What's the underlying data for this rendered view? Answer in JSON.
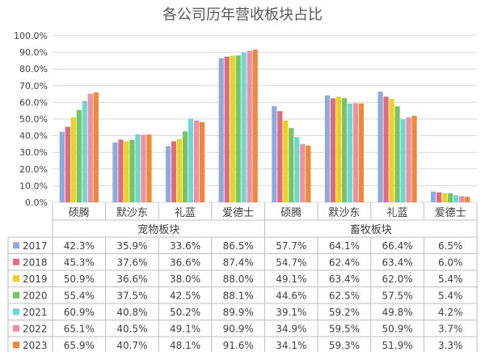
{
  "chart_data": {
    "type": "bar",
    "title": "各公司历年营收板块占比",
    "ylim": [
      0,
      100
    ],
    "yticks": [
      "0.0%",
      "10.0%",
      "20.0%",
      "30.0%",
      "40.0%",
      "50.0%",
      "60.0%",
      "70.0%",
      "80.0%",
      "90.0%",
      "100.0%"
    ],
    "groups": [
      {
        "label": "宠物板块",
        "categories": [
          "硕腾",
          "默沙东",
          "礼蓝",
          "爱德士"
        ]
      },
      {
        "label": "畜牧板块",
        "categories": [
          "硕腾",
          "默沙东",
          "礼蓝",
          "爱德士"
        ]
      }
    ],
    "grid": true,
    "legend": "table-left",
    "series": [
      {
        "name": "2017",
        "color": "#8faadc",
        "values": [
          42.3,
          35.9,
          33.6,
          86.5,
          57.7,
          64.1,
          66.4,
          6.5
        ],
        "labels": [
          "42.3%",
          "35.9%",
          "33.6%",
          "86.5%",
          "57.7%",
          "64.1%",
          "66.4%",
          "6.5%"
        ]
      },
      {
        "name": "2018",
        "color": "#e06c7b",
        "values": [
          45.3,
          37.6,
          36.6,
          87.4,
          54.7,
          62.4,
          63.4,
          6.0
        ],
        "labels": [
          "45.3%",
          "37.6%",
          "36.6%",
          "87.4%",
          "54.7%",
          "62.4%",
          "63.4%",
          "6.0%"
        ]
      },
      {
        "name": "2019",
        "color": "#e8d321",
        "values": [
          50.9,
          36.6,
          38.0,
          88.0,
          49.1,
          63.4,
          62.0,
          5.4
        ],
        "labels": [
          "50.9%",
          "36.6%",
          "38.0%",
          "88.0%",
          "49.1%",
          "63.4%",
          "62.0%",
          "5.4%"
        ]
      },
      {
        "name": "2020",
        "color": "#79c267",
        "values": [
          55.4,
          37.5,
          42.5,
          88.1,
          44.6,
          62.5,
          57.5,
          5.4
        ],
        "labels": [
          "55.4%",
          "37.5%",
          "42.5%",
          "88.1%",
          "44.6%",
          "62.5%",
          "57.5%",
          "5.4%"
        ]
      },
      {
        "name": "2021",
        "color": "#6fd7d0",
        "values": [
          60.9,
          40.8,
          50.2,
          89.9,
          39.1,
          59.2,
          49.8,
          4.2
        ],
        "labels": [
          "60.9%",
          "40.8%",
          "50.2%",
          "89.9%",
          "39.1%",
          "59.2%",
          "49.8%",
          "4.2%"
        ]
      },
      {
        "name": "2022",
        "color": "#ef8fa0",
        "values": [
          65.1,
          40.5,
          49.1,
          90.9,
          34.9,
          59.5,
          50.9,
          3.7
        ],
        "labels": [
          "65.1%",
          "40.5%",
          "49.1%",
          "90.9%",
          "34.9%",
          "59.5%",
          "50.9%",
          "3.7%"
        ]
      },
      {
        "name": "2023",
        "color": "#f0883a",
        "values": [
          65.9,
          40.7,
          48.1,
          91.6,
          34.1,
          59.3,
          51.9,
          3.3
        ],
        "labels": [
          "65.9%",
          "40.7%",
          "48.1%",
          "91.6%",
          "34.1%",
          "59.3%",
          "51.9%",
          "3.3%"
        ]
      }
    ]
  }
}
